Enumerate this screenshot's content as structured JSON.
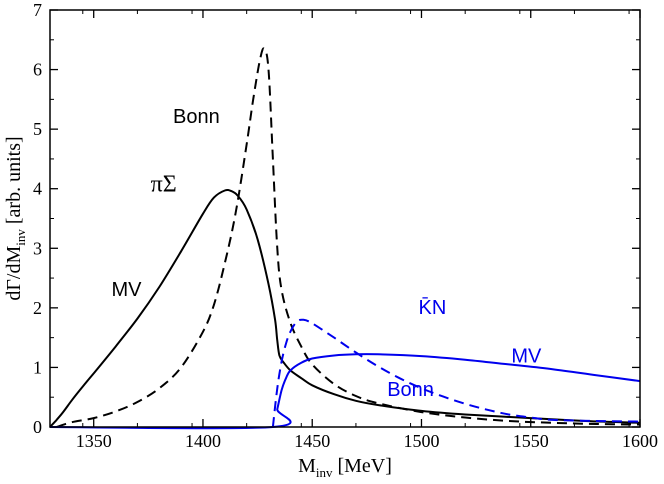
{
  "chart_data": {
    "type": "line",
    "xlim": [
      1330,
      1600
    ],
    "ylim": [
      0,
      7
    ],
    "x_ticks": [
      1350,
      1400,
      1450,
      1500,
      1550,
      1600
    ],
    "y_ticks": [
      0,
      1,
      2,
      3,
      4,
      5,
      6,
      7
    ],
    "x_label": {
      "main": "M",
      "sub": "inv",
      "rest": " [MeV]"
    },
    "y_label": {
      "pre": "dΓ/dM",
      "sub": "inv",
      "post": "  [arb. units]"
    },
    "grid": false,
    "legend": "none",
    "series": [
      {
        "key": "pisigma_mv",
        "color": "#000000",
        "dash": "solid",
        "points": [
          [
            1330,
            0
          ],
          [
            1333,
            0.12
          ],
          [
            1336,
            0.25
          ],
          [
            1340,
            0.45
          ],
          [
            1345,
            0.68
          ],
          [
            1350,
            0.9
          ],
          [
            1360,
            1.35
          ],
          [
            1370,
            1.82
          ],
          [
            1380,
            2.35
          ],
          [
            1390,
            2.95
          ],
          [
            1400,
            3.58
          ],
          [
            1405,
            3.85
          ],
          [
            1410,
            3.97
          ],
          [
            1413,
            3.96
          ],
          [
            1416,
            3.88
          ],
          [
            1420,
            3.65
          ],
          [
            1425,
            3.15
          ],
          [
            1430,
            2.4
          ],
          [
            1433,
            1.8
          ],
          [
            1434,
            1.45
          ],
          [
            1435,
            1.2
          ],
          [
            1437,
            1.08
          ],
          [
            1440,
            0.95
          ],
          [
            1445,
            0.82
          ],
          [
            1450,
            0.7
          ],
          [
            1460,
            0.55
          ],
          [
            1470,
            0.44
          ],
          [
            1480,
            0.37
          ],
          [
            1500,
            0.27
          ],
          [
            1520,
            0.21
          ],
          [
            1550,
            0.15
          ],
          [
            1575,
            0.1
          ],
          [
            1600,
            0.07
          ]
        ]
      },
      {
        "key": "pisigma_bonn",
        "color": "#000000",
        "dash": "dashed",
        "points": [
          [
            1333,
            0
          ],
          [
            1340,
            0.08
          ],
          [
            1350,
            0.15
          ],
          [
            1360,
            0.26
          ],
          [
            1370,
            0.42
          ],
          [
            1380,
            0.65
          ],
          [
            1390,
            1.0
          ],
          [
            1400,
            1.6
          ],
          [
            1405,
            2.05
          ],
          [
            1410,
            2.75
          ],
          [
            1415,
            3.6
          ],
          [
            1420,
            4.75
          ],
          [
            1423,
            5.5
          ],
          [
            1426,
            6.15
          ],
          [
            1428,
            6.35
          ],
          [
            1430,
            6.0
          ],
          [
            1432,
            4.5
          ],
          [
            1434,
            3.0
          ],
          [
            1436,
            2.3
          ],
          [
            1440,
            1.75
          ],
          [
            1445,
            1.35
          ],
          [
            1450,
            1.05
          ],
          [
            1460,
            0.72
          ],
          [
            1470,
            0.52
          ],
          [
            1480,
            0.4
          ],
          [
            1500,
            0.25
          ],
          [
            1520,
            0.16
          ],
          [
            1540,
            0.1
          ],
          [
            1560,
            0.07
          ],
          [
            1580,
            0.05
          ],
          [
            1600,
            0.04
          ]
        ]
      },
      {
        "key": "kbarn_mv",
        "color": "#0000ee",
        "dash": "solid",
        "points": [
          [
            1330,
            0
          ],
          [
            1432,
            0
          ],
          [
            1434,
            0.3
          ],
          [
            1436,
            0.62
          ],
          [
            1438,
            0.82
          ],
          [
            1440,
            0.95
          ],
          [
            1445,
            1.08
          ],
          [
            1450,
            1.15
          ],
          [
            1460,
            1.2
          ],
          [
            1470,
            1.22
          ],
          [
            1480,
            1.22
          ],
          [
            1500,
            1.19
          ],
          [
            1520,
            1.13
          ],
          [
            1540,
            1.05
          ],
          [
            1560,
            0.97
          ],
          [
            1580,
            0.87
          ],
          [
            1600,
            0.77
          ]
        ]
      },
      {
        "key": "kbarn_bonn",
        "color": "#0000ee",
        "dash": "dashed",
        "points": [
          [
            1432,
            0
          ],
          [
            1434,
            0.65
          ],
          [
            1436,
            1.1
          ],
          [
            1438,
            1.4
          ],
          [
            1440,
            1.6
          ],
          [
            1443,
            1.77
          ],
          [
            1446,
            1.8
          ],
          [
            1450,
            1.74
          ],
          [
            1460,
            1.5
          ],
          [
            1470,
            1.25
          ],
          [
            1480,
            1.02
          ],
          [
            1490,
            0.82
          ],
          [
            1500,
            0.65
          ],
          [
            1510,
            0.51
          ],
          [
            1520,
            0.39
          ],
          [
            1530,
            0.29
          ],
          [
            1540,
            0.21
          ],
          [
            1550,
            0.16
          ],
          [
            1560,
            0.12
          ],
          [
            1580,
            0.1
          ],
          [
            1600,
            0.09
          ]
        ]
      }
    ],
    "annotations": [
      {
        "key": "pisigma",
        "text": "πΣ",
        "x": 1382,
        "y": 3.95,
        "color": "#000000",
        "style": "serif"
      },
      {
        "key": "bonn_black",
        "text": "Bonn",
        "x": 1397,
        "y": 5.1,
        "color": "#000000",
        "style": "sans"
      },
      {
        "key": "mv_black",
        "text": "MV",
        "x": 1365,
        "y": 2.2,
        "color": "#000000",
        "style": "sans"
      },
      {
        "key": "kbarn",
        "text": "K̄N",
        "x": 1505,
        "y": 1.9,
        "color": "#0000ee",
        "style": "sans"
      },
      {
        "key": "mv_blue",
        "text": "MV",
        "x": 1548,
        "y": 1.08,
        "color": "#0000ee",
        "style": "sans"
      },
      {
        "key": "bonn_blue",
        "text": "Bonn",
        "x": 1495,
        "y": 0.52,
        "color": "#0000ee",
        "style": "sans"
      }
    ]
  }
}
